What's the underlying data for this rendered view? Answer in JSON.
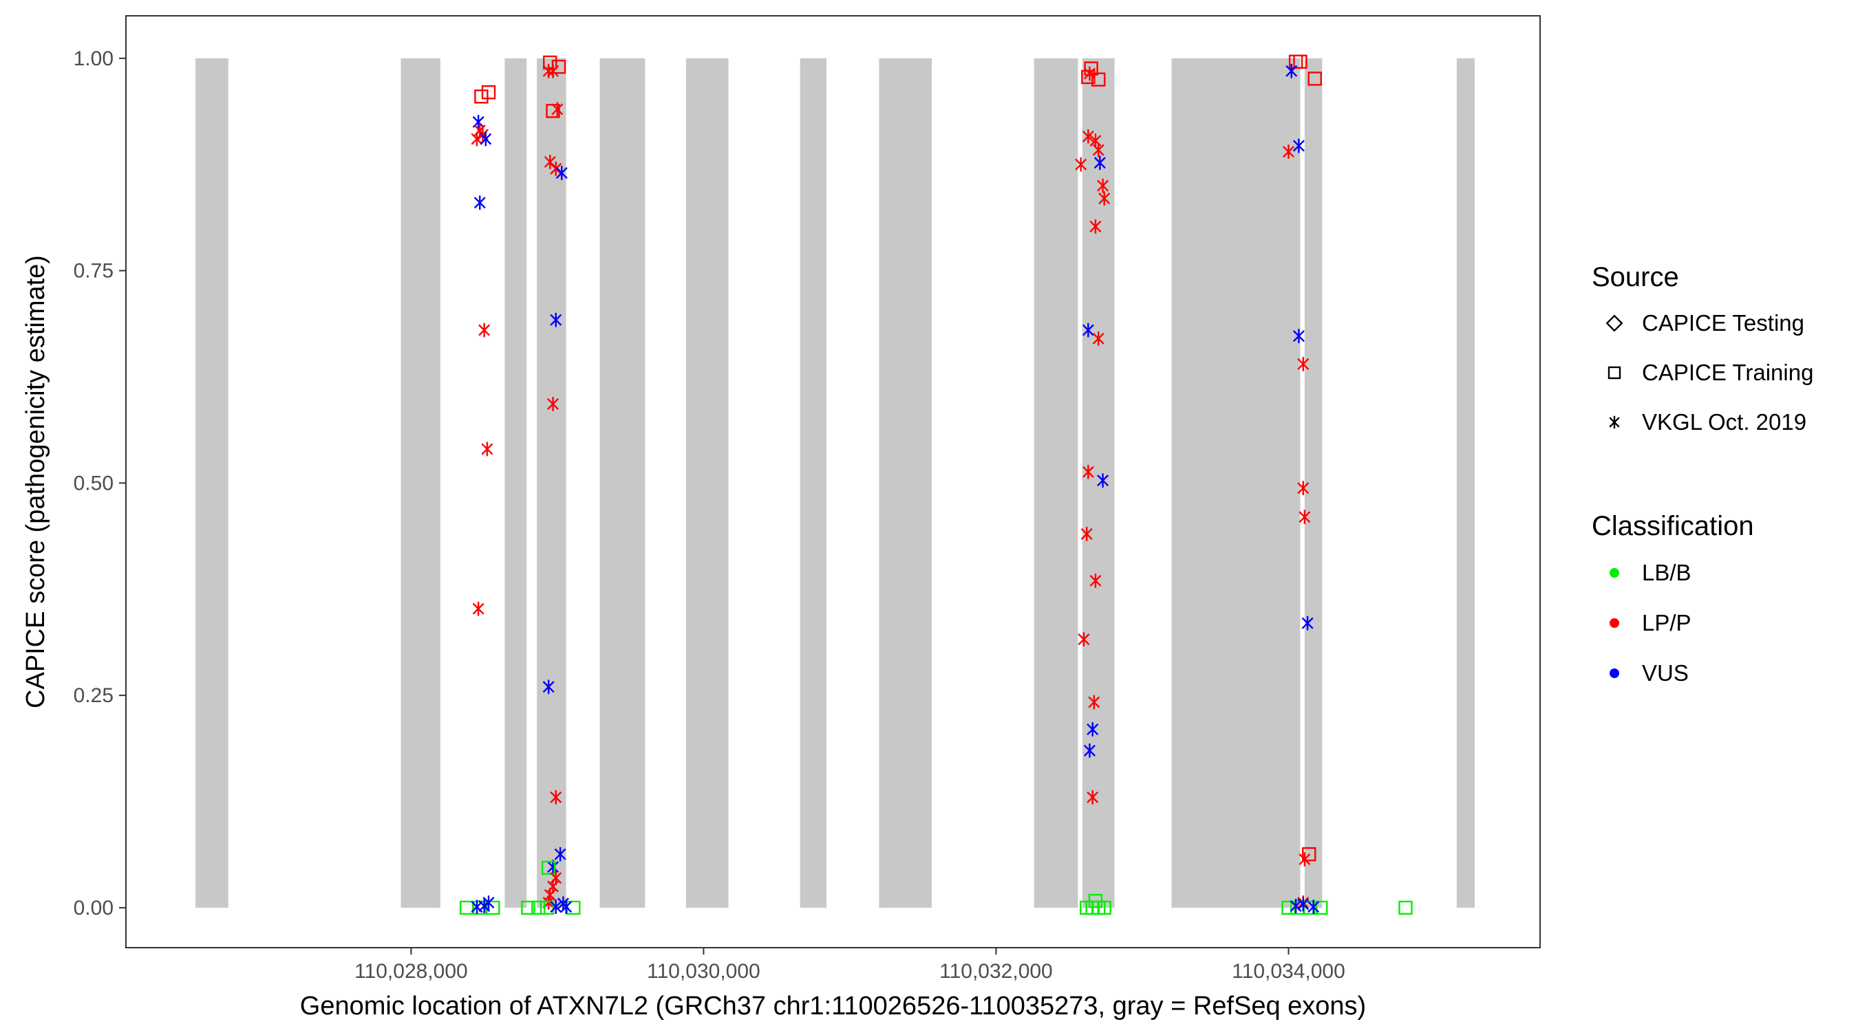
{
  "chart_data": {
    "type": "scatter",
    "xlabel": "Genomic location of ATXN7L2 (GRCh37 chr1:110026526-110035273, gray = RefSeq exons)",
    "ylabel": "CAPICE score (pathogenicity estimate)",
    "xlim": [
      110026050,
      110035720
    ],
    "ylim": [
      -0.047,
      1.05
    ],
    "x_ticks": [
      110028000,
      110030000,
      110032000,
      110034000
    ],
    "x_tick_labels": [
      "110,028,000",
      "110,030,000",
      "110,032,000",
      "110,034,000"
    ],
    "y_ticks": [
      0.0,
      0.25,
      0.5,
      0.75,
      1.0
    ],
    "y_tick_labels": [
      "0.00",
      "0.25",
      "0.50",
      "0.75",
      "1.00"
    ],
    "grid": false,
    "exons": [
      [
        110026526,
        110026750
      ],
      [
        110027930,
        110028200
      ],
      [
        110028640,
        110028790
      ],
      [
        110028860,
        110029060
      ],
      [
        110029290,
        110029600
      ],
      [
        110029880,
        110030170
      ],
      [
        110030660,
        110030840
      ],
      [
        110031200,
        110031560
      ],
      [
        110032260,
        110032560
      ],
      [
        110032590,
        110032810
      ],
      [
        110033200,
        110034080
      ],
      [
        110034110,
        110034230
      ],
      [
        110035150,
        110035273
      ]
    ],
    "legend": {
      "position": "right",
      "source_title": "Source",
      "source_entries": [
        {
          "label": "CAPICE Testing",
          "shape": "diamond"
        },
        {
          "label": "CAPICE Training",
          "shape": "square"
        },
        {
          "label": "VKGL Oct. 2019",
          "shape": "asterisk"
        }
      ],
      "class_title": "Classification",
      "class_entries": [
        {
          "label": "LB/B",
          "color": "#00ee00"
        },
        {
          "label": "LP/P",
          "color": "#ff0000"
        },
        {
          "label": "VUS",
          "color": "#0000ff"
        }
      ]
    },
    "points": [
      {
        "x": 110028480,
        "y": 0.955,
        "source": "CAPICE Training",
        "cls": "LP/P"
      },
      {
        "x": 110028530,
        "y": 0.96,
        "source": "CAPICE Training",
        "cls": "LP/P"
      },
      {
        "x": 110028460,
        "y": 0.925,
        "source": "VKGL Oct. 2019",
        "cls": "VUS"
      },
      {
        "x": 110028450,
        "y": 0.905,
        "source": "VKGL Oct. 2019",
        "cls": "LP/P"
      },
      {
        "x": 110028490,
        "y": 0.91,
        "source": "VKGL Oct. 2019",
        "cls": "LP/P"
      },
      {
        "x": 110028470,
        "y": 0.915,
        "source": "VKGL Oct. 2019",
        "cls": "LP/P"
      },
      {
        "x": 110028510,
        "y": 0.905,
        "source": "VKGL Oct. 2019",
        "cls": "VUS"
      },
      {
        "x": 110028470,
        "y": 0.83,
        "source": "VKGL Oct. 2019",
        "cls": "VUS"
      },
      {
        "x": 110028500,
        "y": 0.68,
        "source": "VKGL Oct. 2019",
        "cls": "LP/P"
      },
      {
        "x": 110028520,
        "y": 0.54,
        "source": "VKGL Oct. 2019",
        "cls": "LP/P"
      },
      {
        "x": 110028460,
        "y": 0.352,
        "source": "VKGL Oct. 2019",
        "cls": "LP/P"
      },
      {
        "x": 110028380,
        "y": 0.0,
        "source": "CAPICE Training",
        "cls": "LB/B"
      },
      {
        "x": 110028470,
        "y": 0.0,
        "source": "CAPICE Training",
        "cls": "LB/B"
      },
      {
        "x": 110028560,
        "y": 0.0,
        "source": "CAPICE Training",
        "cls": "LB/B"
      },
      {
        "x": 110028450,
        "y": 0.001,
        "source": "VKGL Oct. 2019",
        "cls": "VUS"
      },
      {
        "x": 110028500,
        "y": 0.002,
        "source": "VKGL Oct. 2019",
        "cls": "VUS"
      },
      {
        "x": 110028530,
        "y": 0.006,
        "source": "VKGL Oct. 2019",
        "cls": "VUS"
      },
      {
        "x": 110028950,
        "y": 0.995,
        "source": "CAPICE Training",
        "cls": "LP/P"
      },
      {
        "x": 110029010,
        "y": 0.99,
        "source": "CAPICE Training",
        "cls": "LP/P"
      },
      {
        "x": 110028940,
        "y": 0.985,
        "source": "VKGL Oct. 2019",
        "cls": "LP/P"
      },
      {
        "x": 110028970,
        "y": 0.985,
        "source": "VKGL Oct. 2019",
        "cls": "LP/P"
      },
      {
        "x": 110028970,
        "y": 0.938,
        "source": "CAPICE Training",
        "cls": "LP/P"
      },
      {
        "x": 110029000,
        "y": 0.94,
        "source": "VKGL Oct. 2019",
        "cls": "LP/P"
      },
      {
        "x": 110028950,
        "y": 0.878,
        "source": "VKGL Oct. 2019",
        "cls": "LP/P"
      },
      {
        "x": 110028990,
        "y": 0.87,
        "source": "VKGL Oct. 2019",
        "cls": "LP/P"
      },
      {
        "x": 110029030,
        "y": 0.865,
        "source": "VKGL Oct. 2019",
        "cls": "VUS"
      },
      {
        "x": 110028990,
        "y": 0.692,
        "source": "VKGL Oct. 2019",
        "cls": "VUS"
      },
      {
        "x": 110028970,
        "y": 0.593,
        "source": "VKGL Oct. 2019",
        "cls": "LP/P"
      },
      {
        "x": 110028940,
        "y": 0.26,
        "source": "VKGL Oct. 2019",
        "cls": "VUS"
      },
      {
        "x": 110028990,
        "y": 0.13,
        "source": "VKGL Oct. 2019",
        "cls": "LP/P"
      },
      {
        "x": 110029020,
        "y": 0.063,
        "source": "VKGL Oct. 2019",
        "cls": "VUS"
      },
      {
        "x": 110028970,
        "y": 0.048,
        "source": "VKGL Oct. 2019",
        "cls": "VUS"
      },
      {
        "x": 110028940,
        "y": 0.047,
        "source": "CAPICE Training",
        "cls": "LB/B"
      },
      {
        "x": 110028990,
        "y": 0.035,
        "source": "VKGL Oct. 2019",
        "cls": "LP/P"
      },
      {
        "x": 110028970,
        "y": 0.025,
        "source": "VKGL Oct. 2019",
        "cls": "LP/P"
      },
      {
        "x": 110028950,
        "y": 0.015,
        "source": "VKGL Oct. 2019",
        "cls": "LP/P"
      },
      {
        "x": 110028940,
        "y": 0.006,
        "source": "VKGL Oct. 2019",
        "cls": "LP/P"
      },
      {
        "x": 110028800,
        "y": 0.0,
        "source": "CAPICE Training",
        "cls": "LB/B"
      },
      {
        "x": 110028870,
        "y": 0.0,
        "source": "CAPICE Training",
        "cls": "LB/B"
      },
      {
        "x": 110028930,
        "y": 0.0,
        "source": "CAPICE Training",
        "cls": "LB/B"
      },
      {
        "x": 110029110,
        "y": 0.0,
        "source": "CAPICE Training",
        "cls": "LB/B"
      },
      {
        "x": 110028990,
        "y": 0.001,
        "source": "VKGL Oct. 2019",
        "cls": "VUS"
      },
      {
        "x": 110029040,
        "y": 0.005,
        "source": "VKGL Oct. 2019",
        "cls": "VUS"
      },
      {
        "x": 110029060,
        "y": 0.001,
        "source": "VKGL Oct. 2019",
        "cls": "VUS"
      },
      {
        "x": 110032650,
        "y": 0.988,
        "source": "CAPICE Training",
        "cls": "LP/P"
      },
      {
        "x": 110032630,
        "y": 0.978,
        "source": "CAPICE Training",
        "cls": "LP/P"
      },
      {
        "x": 110032700,
        "y": 0.975,
        "source": "CAPICE Training",
        "cls": "LP/P"
      },
      {
        "x": 110032640,
        "y": 0.982,
        "source": "VKGL Oct. 2019",
        "cls": "LP/P"
      },
      {
        "x": 110032630,
        "y": 0.908,
        "source": "VKGL Oct. 2019",
        "cls": "LP/P"
      },
      {
        "x": 110032680,
        "y": 0.903,
        "source": "VKGL Oct. 2019",
        "cls": "LP/P"
      },
      {
        "x": 110032700,
        "y": 0.892,
        "source": "VKGL Oct. 2019",
        "cls": "LP/P"
      },
      {
        "x": 110032580,
        "y": 0.875,
        "source": "VKGL Oct. 2019",
        "cls": "LP/P"
      },
      {
        "x": 110032710,
        "y": 0.877,
        "source": "VKGL Oct. 2019",
        "cls": "VUS"
      },
      {
        "x": 110032730,
        "y": 0.85,
        "source": "VKGL Oct. 2019",
        "cls": "LP/P"
      },
      {
        "x": 110032740,
        "y": 0.835,
        "source": "VKGL Oct. 2019",
        "cls": "LP/P"
      },
      {
        "x": 110032680,
        "y": 0.802,
        "source": "VKGL Oct. 2019",
        "cls": "LP/P"
      },
      {
        "x": 110032630,
        "y": 0.68,
        "source": "VKGL Oct. 2019",
        "cls": "VUS"
      },
      {
        "x": 110032700,
        "y": 0.67,
        "source": "VKGL Oct. 2019",
        "cls": "LP/P"
      },
      {
        "x": 110032630,
        "y": 0.513,
        "source": "VKGL Oct. 2019",
        "cls": "LP/P"
      },
      {
        "x": 110032730,
        "y": 0.503,
        "source": "VKGL Oct. 2019",
        "cls": "VUS"
      },
      {
        "x": 110032620,
        "y": 0.44,
        "source": "VKGL Oct. 2019",
        "cls": "LP/P"
      },
      {
        "x": 110032680,
        "y": 0.385,
        "source": "VKGL Oct. 2019",
        "cls": "LP/P"
      },
      {
        "x": 110032600,
        "y": 0.316,
        "source": "VKGL Oct. 2019",
        "cls": "LP/P"
      },
      {
        "x": 110032670,
        "y": 0.242,
        "source": "VKGL Oct. 2019",
        "cls": "LP/P"
      },
      {
        "x": 110032660,
        "y": 0.21,
        "source": "VKGL Oct. 2019",
        "cls": "VUS"
      },
      {
        "x": 110032640,
        "y": 0.185,
        "source": "VKGL Oct. 2019",
        "cls": "VUS"
      },
      {
        "x": 110032660,
        "y": 0.13,
        "source": "VKGL Oct. 2019",
        "cls": "LP/P"
      },
      {
        "x": 110032680,
        "y": 0.008,
        "source": "CAPICE Training",
        "cls": "LB/B"
      },
      {
        "x": 110032620,
        "y": 0.0,
        "source": "CAPICE Training",
        "cls": "LB/B"
      },
      {
        "x": 110032660,
        "y": 0.0,
        "source": "CAPICE Training",
        "cls": "LB/B"
      },
      {
        "x": 110032700,
        "y": 0.0,
        "source": "CAPICE Training",
        "cls": "LB/B"
      },
      {
        "x": 110032740,
        "y": 0.0,
        "source": "CAPICE Training",
        "cls": "LB/B"
      },
      {
        "x": 110034050,
        "y": 0.996,
        "source": "CAPICE Training",
        "cls": "LP/P"
      },
      {
        "x": 110034080,
        "y": 0.996,
        "source": "CAPICE Training",
        "cls": "LP/P"
      },
      {
        "x": 110034180,
        "y": 0.976,
        "source": "CAPICE Training",
        "cls": "LP/P"
      },
      {
        "x": 110034020,
        "y": 0.985,
        "source": "VKGL Oct. 2019",
        "cls": "VUS"
      },
      {
        "x": 110034070,
        "y": 0.897,
        "source": "VKGL Oct. 2019",
        "cls": "VUS"
      },
      {
        "x": 110034000,
        "y": 0.89,
        "source": "VKGL Oct. 2019",
        "cls": "LP/P"
      },
      {
        "x": 110034070,
        "y": 0.673,
        "source": "VKGL Oct. 2019",
        "cls": "VUS"
      },
      {
        "x": 110034100,
        "y": 0.64,
        "source": "VKGL Oct. 2019",
        "cls": "LP/P"
      },
      {
        "x": 110034100,
        "y": 0.494,
        "source": "VKGL Oct. 2019",
        "cls": "LP/P"
      },
      {
        "x": 110034110,
        "y": 0.46,
        "source": "VKGL Oct. 2019",
        "cls": "LP/P"
      },
      {
        "x": 110034130,
        "y": 0.335,
        "source": "VKGL Oct. 2019",
        "cls": "VUS"
      },
      {
        "x": 110034140,
        "y": 0.063,
        "source": "CAPICE Training",
        "cls": "LP/P"
      },
      {
        "x": 110034110,
        "y": 0.057,
        "source": "VKGL Oct. 2019",
        "cls": "LP/P"
      },
      {
        "x": 110034100,
        "y": 0.006,
        "source": "VKGL Oct. 2019",
        "cls": "LP/P"
      },
      {
        "x": 110034000,
        "y": 0.0,
        "source": "CAPICE Training",
        "cls": "LB/B"
      },
      {
        "x": 110034060,
        "y": 0.0,
        "source": "CAPICE Training",
        "cls": "LB/B"
      },
      {
        "x": 110034150,
        "y": 0.0,
        "source": "CAPICE Training",
        "cls": "LB/B"
      },
      {
        "x": 110034220,
        "y": 0.0,
        "source": "CAPICE Training",
        "cls": "LB/B"
      },
      {
        "x": 110034050,
        "y": 0.002,
        "source": "VKGL Oct. 2019",
        "cls": "VUS"
      },
      {
        "x": 110034100,
        "y": 0.004,
        "source": "VKGL Oct. 2019",
        "cls": "VUS"
      },
      {
        "x": 110034170,
        "y": 0.001,
        "source": "VKGL Oct. 2019",
        "cls": "VUS"
      },
      {
        "x": 110034800,
        "y": 0.0,
        "source": "CAPICE Training",
        "cls": "LB/B"
      }
    ]
  }
}
